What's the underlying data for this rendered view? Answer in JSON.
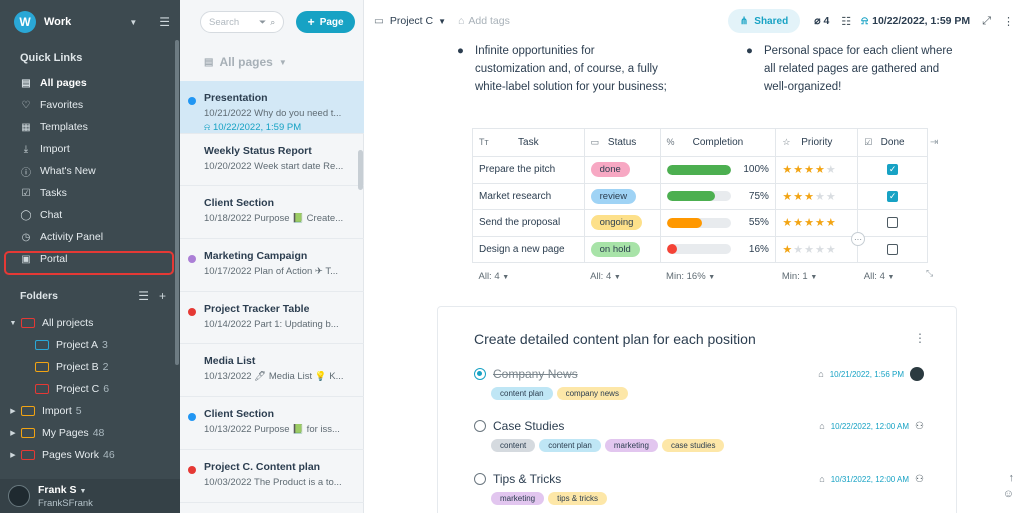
{
  "workspace": {
    "avatar": "W",
    "name": "Work"
  },
  "quick_links": {
    "title": "Quick Links",
    "items": [
      {
        "label": "All pages",
        "icon": "pages-icon"
      },
      {
        "label": "Favorites",
        "icon": "heart-icon"
      },
      {
        "label": "Templates",
        "icon": "templates-icon"
      },
      {
        "label": "Import",
        "icon": "import-icon"
      },
      {
        "label": "What's New",
        "icon": "info-icon"
      },
      {
        "label": "Tasks",
        "icon": "tasks-icon"
      },
      {
        "label": "Chat",
        "icon": "chat-icon"
      },
      {
        "label": "Activity Panel",
        "icon": "activity-icon"
      },
      {
        "label": "Portal",
        "icon": "portal-icon"
      }
    ]
  },
  "folders": {
    "title": "Folders",
    "tree": [
      {
        "label": "All projects",
        "count": "",
        "color": "#e53935",
        "open": true
      },
      {
        "label": "Project A",
        "count": "3",
        "color": "#2aa7d6"
      },
      {
        "label": "Project B",
        "count": "2",
        "color": "#f2a413"
      },
      {
        "label": "Project C",
        "count": "6",
        "color": "#e53935"
      },
      {
        "label": "Import",
        "count": "5",
        "color": "#f2a413"
      },
      {
        "label": "My Pages",
        "count": "48",
        "color": "#f2a413"
      },
      {
        "label": "Pages Work",
        "count": "46",
        "color": "#e53935"
      }
    ]
  },
  "user": {
    "name": "Frank S",
    "handle": "FrankSFrank"
  },
  "page_list": {
    "search_placeholder": "Search",
    "new_page_label": "Page",
    "filter_label": "All pages",
    "items": [
      {
        "title": "Presentation",
        "desc": "10/21/2022 Why do you need t...",
        "reminder": "10/22/2022, 1:59 PM",
        "dot": "#2196f3"
      },
      {
        "title": "Weekly Status Report",
        "desc": "10/20/2022 Week start date Re...",
        "reminder": "",
        "dot": ""
      },
      {
        "title": "Client Section",
        "desc": "10/18/2022 Purpose 📗 Create...",
        "reminder": "",
        "dot": ""
      },
      {
        "title": "Marketing Campaign",
        "desc": "10/17/2022 Plan of Action ✈ T...",
        "reminder": "",
        "dot": "#ab7fd6"
      },
      {
        "title": "Project Tracker Table",
        "desc": "10/14/2022 Part 1: Updating b...",
        "reminder": "",
        "dot": "#e53935"
      },
      {
        "title": "Media List",
        "desc": "10/13/2022 🖊 Media List 💡 K...",
        "reminder": "",
        "dot": ""
      },
      {
        "title": "Client Section",
        "desc": "10/13/2022 Purpose 📗 for iss...",
        "reminder": "",
        "dot": "#2196f3"
      },
      {
        "title": "Project C. Content plan",
        "desc": "10/03/2022 The Product is a to...",
        "reminder": "",
        "dot": "#e53935"
      }
    ]
  },
  "header": {
    "breadcrumb": "Project C",
    "tags_placeholder": "Add tags",
    "shared_label": "Shared",
    "attachments": "4",
    "reminder": "10/22/2022, 1:59 PM"
  },
  "bullets": {
    "left": [
      "Infinite opportunities for",
      "customization and, of course, a fully",
      "white-label solution for your business;"
    ],
    "right": [
      "Personal space for each client where",
      "all related pages are gathered and",
      "well-organized!"
    ]
  },
  "table": {
    "headers": [
      "Task",
      "Status",
      "Completion",
      "Priority",
      "Done"
    ],
    "rows": [
      {
        "task": "Prepare the pitch",
        "status": "done",
        "status_bg": "#f7a8c3",
        "pct": 100,
        "pct_label": "100%",
        "bar": "#4caf50",
        "stars": 4,
        "done": true
      },
      {
        "task": "Market research",
        "status": "review",
        "status_bg": "#9fd3f5",
        "pct": 75,
        "pct_label": "75%",
        "bar": "#4caf50",
        "stars": 3,
        "done": true
      },
      {
        "task": "Send the proposal",
        "status": "ongoing",
        "status_bg": "#fde08a",
        "pct": 55,
        "pct_label": "55%",
        "bar": "#ff9800",
        "stars": 5,
        "done": false
      },
      {
        "task": "Design a new page",
        "status": "on hold",
        "status_bg": "#a8e3a8",
        "pct": 16,
        "pct_label": "16%",
        "bar": "#f44336",
        "stars": 1,
        "done": false
      }
    ],
    "footer": [
      "All: 4",
      "All: 4",
      "Min: 16%",
      "Min: 1",
      "All: 4"
    ]
  },
  "card": {
    "title": "Create detailed content plan for each position",
    "tasks": [
      {
        "name": "Company News",
        "done": true,
        "date": "10/21/2022, 1:56 PM",
        "chips": [
          {
            "t": "content plan",
            "c": "#bfe6f5"
          },
          {
            "t": "company news",
            "c": "#fde7a8"
          }
        ]
      },
      {
        "name": "Case Studies",
        "done": false,
        "date": "10/22/2022, 12:00 AM",
        "chips": [
          {
            "t": "content",
            "c": "#d5dadf"
          },
          {
            "t": "content plan",
            "c": "#bfe6f5"
          },
          {
            "t": "marketing",
            "c": "#e2c6ef"
          },
          {
            "t": "case studies",
            "c": "#fde7a8"
          }
        ]
      },
      {
        "name": "Tips & Tricks",
        "done": false,
        "date": "10/31/2022, 12:00 AM",
        "chips": [
          {
            "t": "marketing",
            "c": "#e2c6ef"
          },
          {
            "t": "tips & tricks",
            "c": "#fde7a8"
          }
        ]
      }
    ]
  }
}
